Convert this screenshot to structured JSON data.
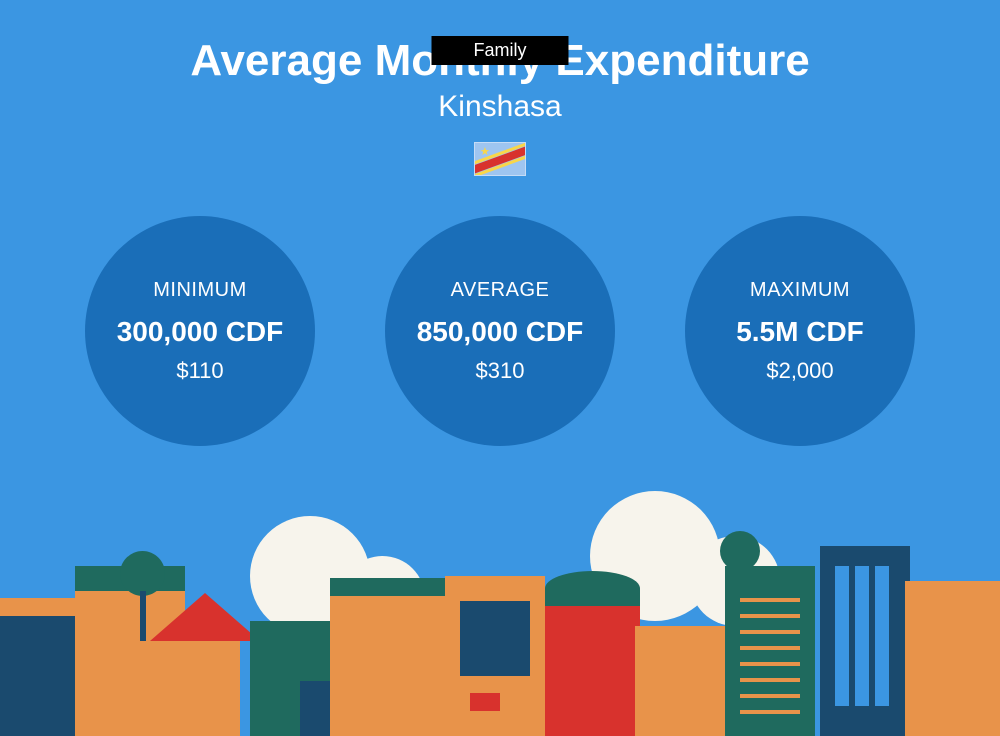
{
  "badge": "Family",
  "title": "Average Monthly Expenditure",
  "subtitle": "Kinshasa",
  "background_color": "#3b96e2",
  "circle_color": "#1a6eb8",
  "stats": [
    {
      "label": "MINIMUM",
      "main_value": "300,000 CDF",
      "sub_value": "$110"
    },
    {
      "label": "AVERAGE",
      "main_value": "850,000 CDF",
      "sub_value": "$310"
    },
    {
      "label": "MAXIMUM",
      "main_value": "5.5M CDF",
      "sub_value": "$2,000"
    }
  ],
  "flag": {
    "field_color": "#9ec5f0",
    "stripe_yellow": "#f9d648",
    "stripe_red": "#d8322d",
    "star_color": "#f9d648"
  },
  "cityscape_palette": {
    "cream": "#f7f4ec",
    "orange": "#e8934a",
    "teal": "#1f6a5e",
    "navy": "#1a4a6e",
    "red": "#d8322d"
  }
}
